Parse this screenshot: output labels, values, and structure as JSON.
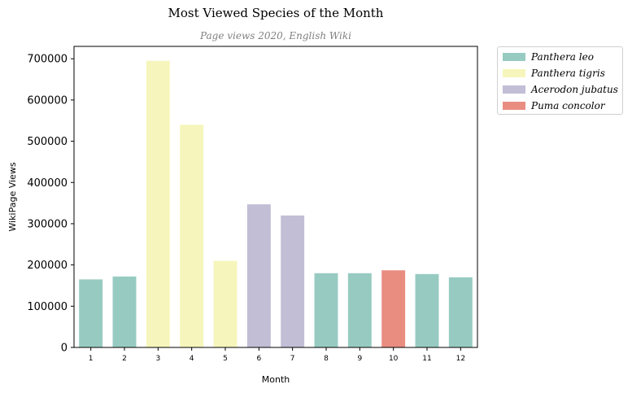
{
  "chart_data": {
    "type": "bar",
    "title": "Most Viewed Species of the Month",
    "subtitle": "Page views 2020, English Wiki",
    "xlabel": "Month",
    "ylabel": "WikiPage Views",
    "ylim": [
      0,
      730000
    ],
    "yticks": [
      "0",
      "100000",
      "200000",
      "300000",
      "400000",
      "500000",
      "600000",
      "700000"
    ],
    "categories": [
      "1",
      "2",
      "3",
      "4",
      "5",
      "6",
      "7",
      "8",
      "9",
      "10",
      "11",
      "12"
    ],
    "values": [
      165000,
      172000,
      695000,
      540000,
      210000,
      347000,
      320000,
      180000,
      180000,
      187000,
      178000,
      170000
    ],
    "species": [
      "Panthera leo",
      "Panthera leo",
      "Panthera tigris",
      "Panthera tigris",
      "Panthera tigris",
      "Acerodon jubatus",
      "Acerodon jubatus",
      "Panthera leo",
      "Panthera leo",
      "Puma concolor",
      "Panthera leo",
      "Panthera leo"
    ],
    "grid": false,
    "legend_position": "outside-top-right",
    "legend": [
      {
        "name": "Panthera leo",
        "color": "#97cbc1"
      },
      {
        "name": "Panthera tigris",
        "color": "#f6f6bc"
      },
      {
        "name": "Acerodon jubatus",
        "color": "#c1bed6"
      },
      {
        "name": "Puma concolor",
        "color": "#e98d81"
      }
    ]
  }
}
